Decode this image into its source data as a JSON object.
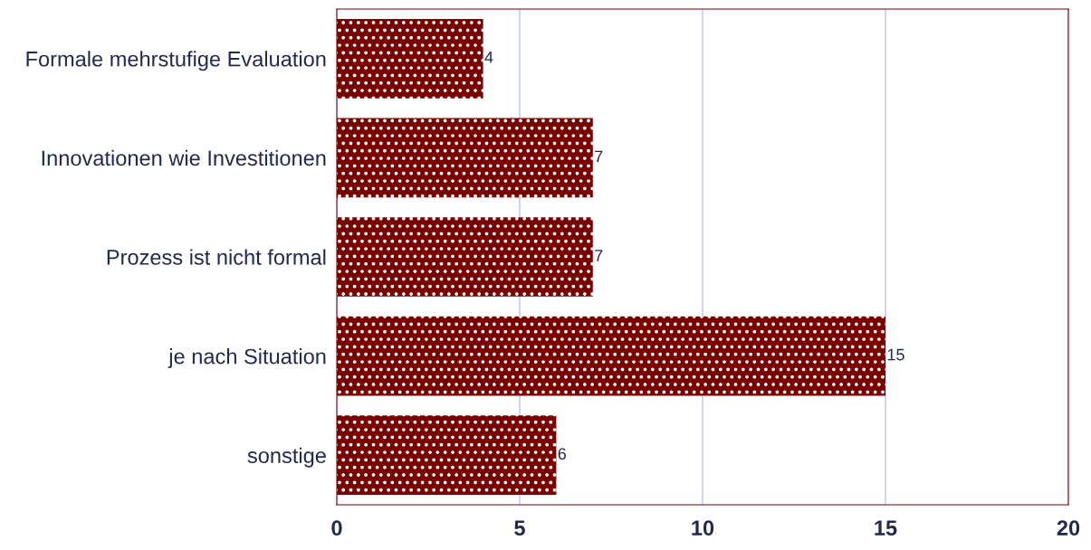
{
  "chart_data": {
    "type": "bar",
    "orientation": "horizontal",
    "categories": [
      "Formale mehrstufige Evaluation",
      "Innovationen wie Investitionen",
      "Prozess ist nicht formal",
      "je nach Situation",
      "sonstige"
    ],
    "values": [
      4,
      7,
      7,
      15,
      6
    ],
    "color": "#7a0000",
    "xlim": [
      0,
      20
    ],
    "xticks": [
      0,
      5,
      10,
      15,
      20
    ],
    "grid": "x",
    "data_labels": true
  }
}
